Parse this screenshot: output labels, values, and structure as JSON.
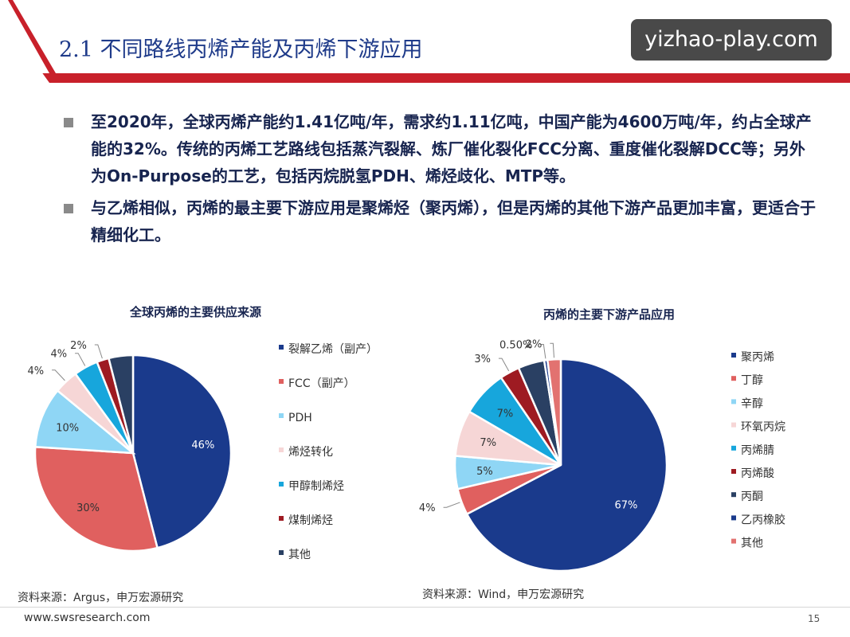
{
  "slide": {
    "title": "2.1 不同路线丙烯产能及丙烯下游应用",
    "watermark": "yizhao-play.com",
    "bullets": [
      "至2020年，全球丙烯产能约1.41亿吨/年，需求约1.11亿吨，中国产能为4600万吨/年，约占全球产能的32%。传统的丙烯工艺路线包括蒸汽裂解、炼厂催化裂化FCC分离、重度催化裂解DCC等；另外为On-Purpose的工艺，包括丙烷脱氢PDH、烯烃歧化、MTP等。",
      "与乙烯相似，丙烯的最主要下游应用是聚烯烃（聚丙烯），但是丙烯的其他下游产品更加丰富，更适合于精细化工。"
    ],
    "footer_url": "www.swsresearch.com",
    "page_number": "15"
  },
  "colors": {
    "header_red": "#c8202a",
    "title_blue": "#1f3b8a",
    "navy": "#1a3a8c",
    "red": "#e0605f",
    "light_blue": "#8fd6f5",
    "pink": "#f6d6d6",
    "cyan": "#17a6dc",
    "dark_red": "#9e1b22",
    "dark_slate": "#2a4063",
    "light_red": "#e27270"
  },
  "chart_data": [
    {
      "type": "pie",
      "title": "全球丙烯的主要供应来源",
      "source": "资料来源：Argus，申万宏源研究",
      "legend_position": "right",
      "slices": [
        {
          "name": "裂解乙烯（副产）",
          "value": 46,
          "label": "46%",
          "color": "#1a3a8c"
        },
        {
          "name": "FCC（副产）",
          "value": 30,
          "label": "30%",
          "color": "#e0605f"
        },
        {
          "name": "PDH",
          "value": 10,
          "label": "10%",
          "color": "#8fd6f5"
        },
        {
          "name": "烯烃转化",
          "value": 4,
          "label": "4%",
          "color": "#f6d6d6"
        },
        {
          "name": "甲醇制烯烃",
          "value": 4,
          "label": "4%",
          "color": "#17a6dc"
        },
        {
          "name": "煤制烯烃",
          "value": 2,
          "label": "2%",
          "color": "#9e1b22"
        },
        {
          "name": "其他",
          "value": 4,
          "label": "",
          "color": "#2a4063"
        }
      ]
    },
    {
      "type": "pie",
      "title": "丙烯的主要下游产品应用",
      "source": "资料来源：Wind，申万宏源研究",
      "legend_position": "right",
      "slices": [
        {
          "name": "聚丙烯",
          "value": 67,
          "label": "67%",
          "color": "#1a3a8c"
        },
        {
          "name": "丁醇",
          "value": 4,
          "label": "4%",
          "color": "#e0605f"
        },
        {
          "name": "辛醇",
          "value": 5,
          "label": "5%",
          "color": "#8fd6f5"
        },
        {
          "name": "环氧丙烷",
          "value": 7,
          "label": "7%",
          "color": "#f6d6d6"
        },
        {
          "name": "丙烯腈",
          "value": 7,
          "label": "7%",
          "color": "#17a6dc"
        },
        {
          "name": "丙烯酸",
          "value": 3,
          "label": "3%",
          "color": "#9e1b22"
        },
        {
          "name": "丙酮",
          "value": 4,
          "label": "",
          "color": "#2a4063"
        },
        {
          "name": "乙丙橡胶",
          "value": 0.5,
          "label": "0.50%",
          "color": "#1a3a8c"
        },
        {
          "name": "其他",
          "value": 2,
          "label": "2%",
          "color": "#e27270"
        }
      ]
    }
  ]
}
